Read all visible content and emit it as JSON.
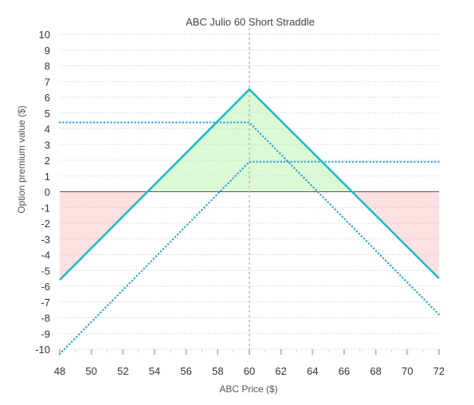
{
  "chart_data": {
    "type": "line",
    "title": "ABC Julio 60 Short Straddle",
    "xlabel": "ABC Price ($)",
    "ylabel": "Option premium value ($)",
    "xlim": [
      48,
      72
    ],
    "ylim": [
      -10,
      10
    ],
    "x_ticks": [
      "48",
      "50",
      "52",
      "54",
      "56",
      "58",
      "60",
      "62",
      "64",
      "66",
      "68",
      "70",
      "72"
    ],
    "y_ticks": [
      "10",
      "9",
      "8",
      "7",
      "6",
      "5",
      "4",
      "3",
      "2",
      "1",
      "0",
      "-1",
      "-2",
      "-3",
      "-4",
      "-5",
      "-6",
      "-7",
      "-8",
      "-9",
      "-10"
    ],
    "grid": true,
    "strike_marker_x": 60,
    "series": [
      {
        "style": "solid",
        "color": "#1fbcc6",
        "x": [
          48,
          60,
          72
        ],
        "y": [
          -5.6,
          6.5,
          -5.5
        ]
      },
      {
        "style": "dotted",
        "color": "#2aa7d9",
        "x": [
          48,
          60,
          72
        ],
        "y": [
          4.4,
          4.4,
          -7.8
        ]
      },
      {
        "style": "dotted",
        "color": "#2aa7d9",
        "x": [
          48,
          60,
          72
        ],
        "y": [
          -10.3,
          1.9,
          1.9
        ]
      }
    ],
    "profit_fill_color": "#dcf9d6",
    "loss_fill_color": "#fde0e2"
  }
}
